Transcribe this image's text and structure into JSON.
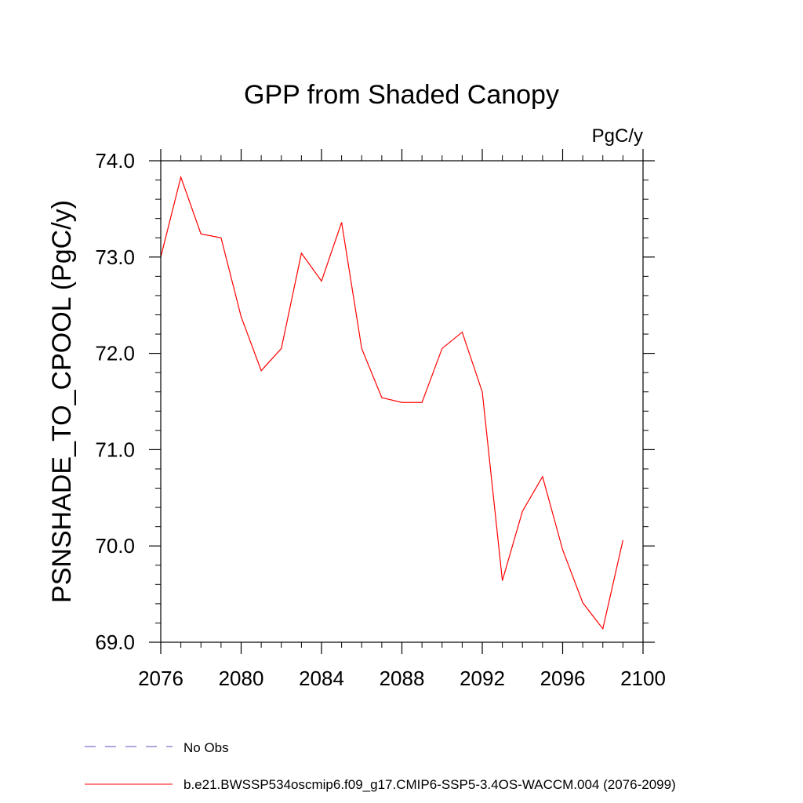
{
  "chart_data": {
    "type": "line",
    "title": "GPP from Shaded Canopy",
    "units_label": "PgC/y",
    "ylabel": "PSNSHADE_TO_CPOOL  (PgC/y)",
    "xlabel": "",
    "xlim": [
      2076,
      2100
    ],
    "ylim": [
      69.0,
      74.0
    ],
    "x_ticks": [
      "2076",
      "2080",
      "2084",
      "2088",
      "2092",
      "2096",
      "2100"
    ],
    "y_ticks": [
      "69.0",
      "70.0",
      "71.0",
      "72.0",
      "73.0",
      "74.0"
    ],
    "x": [
      2076,
      2077,
      2078,
      2079,
      2080,
      2081,
      2082,
      2083,
      2084,
      2085,
      2086,
      2087,
      2088,
      2089,
      2090,
      2091,
      2092,
      2093,
      2094,
      2095,
      2096,
      2097,
      2098,
      2099
    ],
    "series": [
      {
        "name": "b.e21.BWSSP534oscmip6.f09_g17.CMIP6-SSP5-3.4OS-WACCM.004 (2076-2099)",
        "color": "#ff0000",
        "values": [
          73.0,
          73.83,
          73.24,
          73.2,
          72.38,
          71.82,
          72.05,
          73.04,
          72.75,
          73.36,
          72.05,
          71.54,
          71.49,
          71.49,
          72.05,
          72.22,
          71.6,
          69.64,
          70.36,
          70.72,
          69.96,
          69.41,
          69.14,
          70.06
        ]
      }
    ],
    "legend": [
      {
        "label": "No Obs",
        "style": "dashed",
        "color": "#5b4fb8"
      },
      {
        "label": "b.e21.BWSSP534oscmip6.f09_g17.CMIP6-SSP5-3.4OS-WACCM.004 (2076-2099)",
        "style": "solid",
        "color": "#ff0000"
      }
    ],
    "legend_placement": "bottom",
    "grid": false
  }
}
